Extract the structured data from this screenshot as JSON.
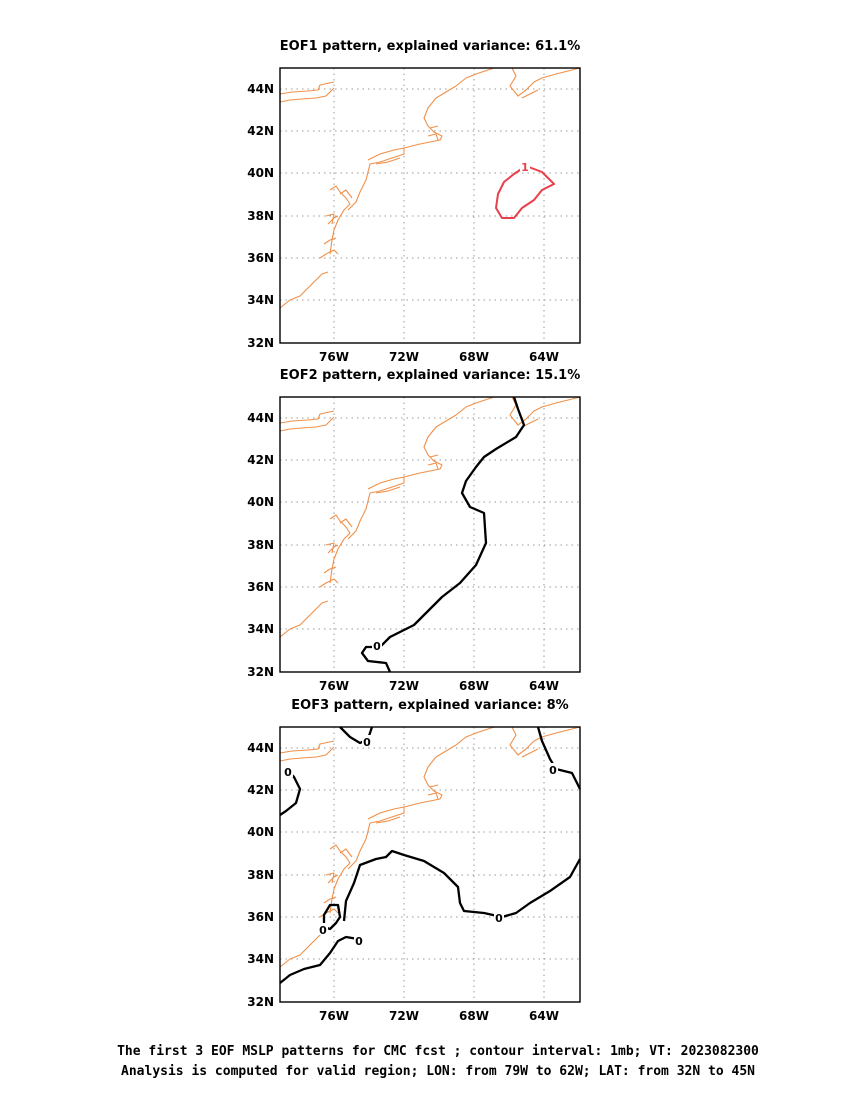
{
  "panels": [
    {
      "title": "EOF1 pattern, explained variance: 61.1%",
      "contours": [
        {
          "label": "1",
          "color": "#e8404a"
        }
      ]
    },
    {
      "title": "EOF2 pattern, explained variance: 15.1%",
      "contours": [
        {
          "label": "0",
          "color": "#000000"
        }
      ]
    },
    {
      "title": "EOF3 pattern, explained variance: 8%",
      "contours": [
        {
          "label": "0",
          "color": "#000000"
        }
      ]
    }
  ],
  "axes": {
    "lon_ticks": [
      "76W",
      "72W",
      "68W",
      "64W"
    ],
    "lat_ticks": [
      "44N",
      "42N",
      "40N",
      "38N",
      "36N",
      "34N",
      "32N"
    ],
    "lon_range": [
      -79,
      -62
    ],
    "lat_range": [
      32,
      45
    ]
  },
  "caption": {
    "line1": "The first 3 EOF MSLP patterns for CMC fcst ; contour interval: 1mb; VT: 2023082300",
    "line2": "Analysis is computed for valid region; LON: from 79W to 62W; LAT: from 32N to 45N"
  },
  "colors": {
    "coastline": "#f0904a",
    "positive_contour": "#e8404a",
    "zero_contour": "#000000",
    "grid": "#999999"
  }
}
